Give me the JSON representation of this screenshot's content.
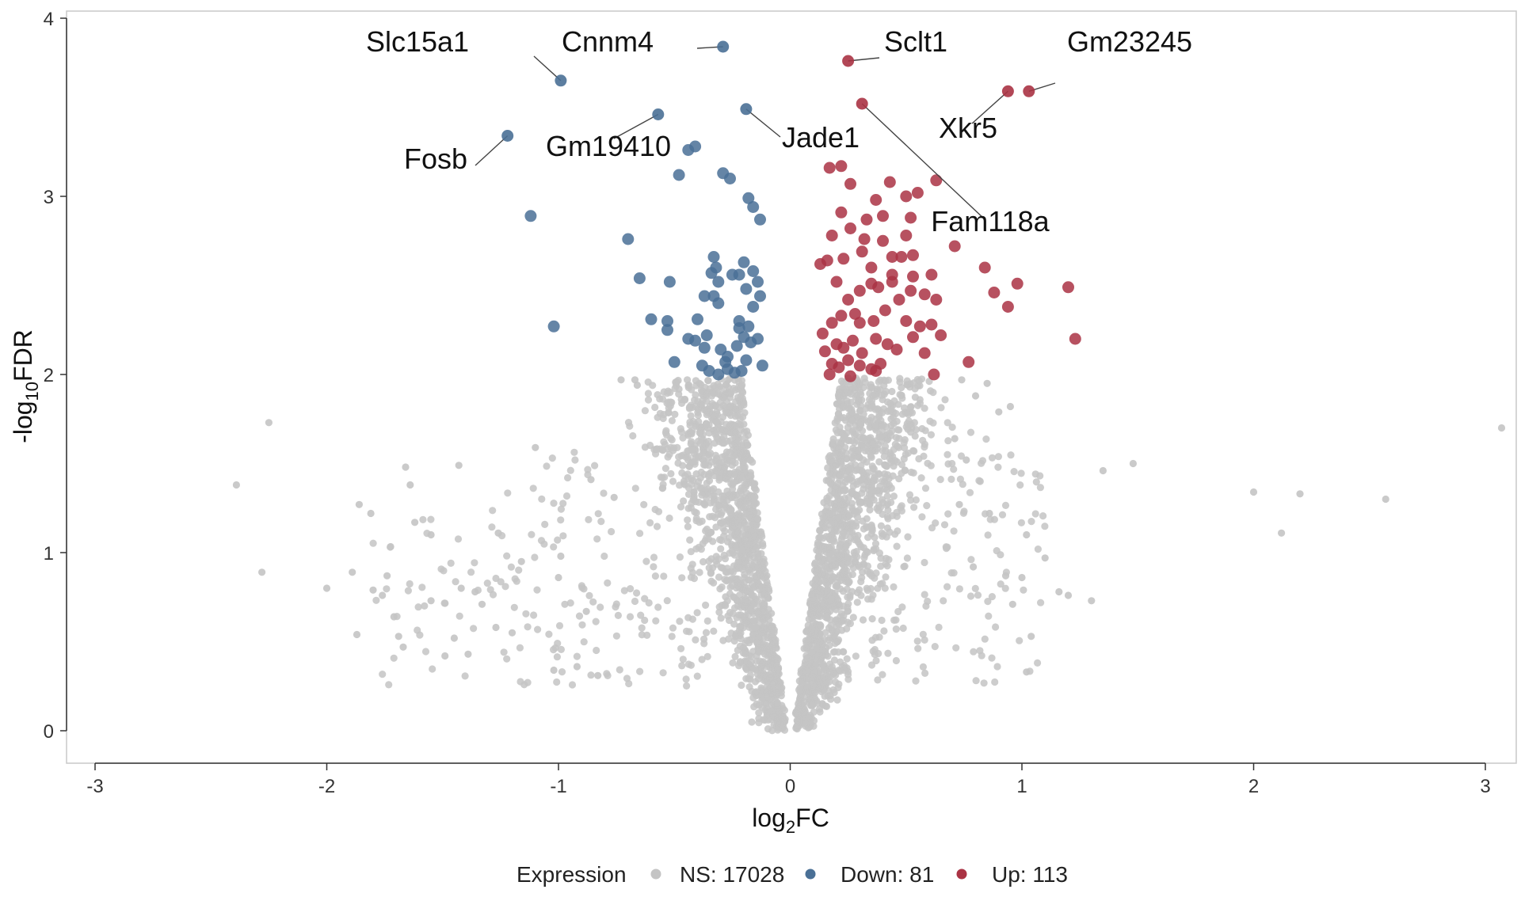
{
  "chart_data": {
    "type": "scatter",
    "subtype": "volcano",
    "xlabel": "log2FC",
    "ylabel": "-log10FDR",
    "xlim": [
      -3.12,
      3.12
    ],
    "ylim": [
      -0.2,
      4.03
    ],
    "x_ticks": [
      -3,
      -2,
      -1,
      0,
      1,
      2,
      3
    ],
    "x_tick_labels": [
      "-3",
      "-2",
      "-1",
      "0",
      "1",
      "2",
      "3"
    ],
    "y_ticks": [
      0,
      1,
      2,
      3,
      4
    ],
    "y_tick_labels": [
      "0",
      "1",
      "2",
      "3",
      "4"
    ],
    "grid": false,
    "legend": {
      "title": "Expression",
      "position": "bottom",
      "entries": [
        {
          "key": "ns",
          "label": "NS: 17028",
          "color": "#c4c4c4"
        },
        {
          "key": "down",
          "label": "Down: 81",
          "color": "#4a7096"
        },
        {
          "key": "up",
          "label": "Up: 113",
          "color": "#aa3344"
        }
      ]
    },
    "colors": {
      "ns": "#c4c4c4",
      "down": "#4a7096",
      "up": "#aa3344"
    },
    "labeled_genes": [
      {
        "gene": "Slc15a1",
        "x": -0.99,
        "y": 3.65,
        "group": "down"
      },
      {
        "gene": "Cnnm4",
        "x": -0.29,
        "y": 3.84,
        "group": "down"
      },
      {
        "gene": "Fosb",
        "x": -1.22,
        "y": 3.34,
        "group": "down"
      },
      {
        "gene": "Gm19410",
        "x": -0.57,
        "y": 3.46,
        "group": "down"
      },
      {
        "gene": "Jade1",
        "x": -0.19,
        "y": 3.49,
        "group": "down"
      },
      {
        "gene": "Sclt1",
        "x": 0.25,
        "y": 3.76,
        "group": "up"
      },
      {
        "gene": "Gm23245",
        "x": 1.03,
        "y": 3.59,
        "group": "up"
      },
      {
        "gene": "Xkr5",
        "x": 0.94,
        "y": 3.59,
        "group": "up"
      },
      {
        "gene": "Fam118a",
        "x": 0.31,
        "y": 3.52,
        "group": "up"
      }
    ],
    "down_points": [
      [
        -1.12,
        2.89
      ],
      [
        -1.02,
        2.27
      ],
      [
        -0.7,
        2.76
      ],
      [
        -0.65,
        2.54
      ],
      [
        -0.6,
        2.31
      ],
      [
        -0.53,
        2.3
      ],
      [
        -0.52,
        2.52
      ],
      [
        -0.5,
        2.07
      ],
      [
        -0.48,
        3.12
      ],
      [
        -0.44,
        3.26
      ],
      [
        -0.41,
        3.28
      ],
      [
        -0.4,
        2.31
      ],
      [
        -0.37,
        2.44
      ],
      [
        -0.33,
        2.66
      ],
      [
        -0.32,
        2.6
      ],
      [
        -0.31,
        2.52
      ],
      [
        -0.29,
        3.13
      ],
      [
        -0.26,
        3.1
      ],
      [
        -0.18,
        2.99
      ],
      [
        -0.16,
        2.94
      ],
      [
        -0.13,
        2.87
      ],
      [
        -0.22,
        2.56
      ],
      [
        -0.2,
        2.63
      ],
      [
        -0.16,
        2.58
      ],
      [
        -0.14,
        2.52
      ],
      [
        -0.13,
        2.44
      ],
      [
        -0.19,
        2.48
      ],
      [
        -0.16,
        2.38
      ],
      [
        -0.22,
        2.3
      ],
      [
        -0.18,
        2.27
      ],
      [
        -0.33,
        2.44
      ],
      [
        -0.31,
        2.4
      ],
      [
        -0.36,
        2.22
      ],
      [
        -0.3,
        2.14
      ],
      [
        -0.27,
        2.1
      ],
      [
        -0.23,
        2.16
      ],
      [
        -0.2,
        2.21
      ],
      [
        -0.17,
        2.18
      ],
      [
        -0.14,
        2.2
      ],
      [
        -0.12,
        2.05
      ],
      [
        -0.38,
        2.05
      ],
      [
        -0.35,
        2.02
      ],
      [
        -0.31,
        2.0
      ],
      [
        -0.27,
        2.03
      ],
      [
        -0.24,
        2.01
      ],
      [
        -0.21,
        2.02
      ],
      [
        -0.41,
        2.19
      ],
      [
        -0.44,
        2.2
      ],
      [
        -0.53,
        2.25
      ],
      [
        -0.25,
        2.56
      ],
      [
        -0.34,
        2.57
      ],
      [
        -0.37,
        2.15
      ],
      [
        -0.28,
        2.07
      ],
      [
        -0.19,
        2.08
      ],
      [
        -0.22,
        2.26
      ]
    ],
    "up_points": [
      [
        0.17,
        3.16
      ],
      [
        0.22,
        3.17
      ],
      [
        0.26,
        3.07
      ],
      [
        0.37,
        2.98
      ],
      [
        0.43,
        3.08
      ],
      [
        0.5,
        3.0
      ],
      [
        0.55,
        3.02
      ],
      [
        0.63,
        3.09
      ],
      [
        0.22,
        2.91
      ],
      [
        0.33,
        2.87
      ],
      [
        0.4,
        2.89
      ],
      [
        0.52,
        2.88
      ],
      [
        0.18,
        2.78
      ],
      [
        0.26,
        2.82
      ],
      [
        0.32,
        2.76
      ],
      [
        0.4,
        2.75
      ],
      [
        0.5,
        2.78
      ],
      [
        0.16,
        2.64
      ],
      [
        0.23,
        2.65
      ],
      [
        0.31,
        2.69
      ],
      [
        0.35,
        2.6
      ],
      [
        0.44,
        2.66
      ],
      [
        0.48,
        2.66
      ],
      [
        0.53,
        2.67
      ],
      [
        0.61,
        2.56
      ],
      [
        0.71,
        2.72
      ],
      [
        0.84,
        2.6
      ],
      [
        0.98,
        2.51
      ],
      [
        1.2,
        2.49
      ],
      [
        0.88,
        2.46
      ],
      [
        0.94,
        2.38
      ],
      [
        1.23,
        2.2
      ],
      [
        0.25,
        2.42
      ],
      [
        0.3,
        2.47
      ],
      [
        0.35,
        2.51
      ],
      [
        0.38,
        2.49
      ],
      [
        0.44,
        2.52
      ],
      [
        0.52,
        2.47
      ],
      [
        0.58,
        2.45
      ],
      [
        0.63,
        2.42
      ],
      [
        0.18,
        2.29
      ],
      [
        0.22,
        2.33
      ],
      [
        0.28,
        2.34
      ],
      [
        0.3,
        2.29
      ],
      [
        0.36,
        2.3
      ],
      [
        0.41,
        2.36
      ],
      [
        0.47,
        2.42
      ],
      [
        0.5,
        2.3
      ],
      [
        0.56,
        2.27
      ],
      [
        0.61,
        2.28
      ],
      [
        0.65,
        2.22
      ],
      [
        0.15,
        2.13
      ],
      [
        0.2,
        2.17
      ],
      [
        0.23,
        2.15
      ],
      [
        0.27,
        2.19
      ],
      [
        0.31,
        2.12
      ],
      [
        0.37,
        2.2
      ],
      [
        0.42,
        2.17
      ],
      [
        0.46,
        2.14
      ],
      [
        0.53,
        2.21
      ],
      [
        0.58,
        2.12
      ],
      [
        0.18,
        2.06
      ],
      [
        0.21,
        2.04
      ],
      [
        0.25,
        2.08
      ],
      [
        0.3,
        2.05
      ],
      [
        0.35,
        2.03
      ],
      [
        0.39,
        2.06
      ],
      [
        0.62,
        2.0
      ],
      [
        0.77,
        2.07
      ],
      [
        0.17,
        2.0
      ],
      [
        0.26,
        1.99
      ],
      [
        0.37,
        2.02
      ],
      [
        0.13,
        2.62
      ],
      [
        0.2,
        2.52
      ],
      [
        0.14,
        2.23
      ],
      [
        0.44,
        2.56
      ],
      [
        0.53,
        2.55
      ]
    ],
    "ns_notable_points": [
      [
        -2.39,
        1.38
      ],
      [
        -2.28,
        0.89
      ],
      [
        -2.25,
        1.73
      ],
      [
        -2.0,
        0.8
      ],
      [
        -1.89,
        0.89
      ],
      [
        -1.87,
        0.54
      ],
      [
        -1.86,
        1.27
      ],
      [
        -1.8,
        0.79
      ],
      [
        -1.76,
        0.76
      ],
      [
        -1.74,
        0.87
      ],
      [
        -1.71,
        0.64
      ],
      [
        -1.69,
        0.53
      ],
      [
        -1.66,
        1.48
      ],
      [
        -1.64,
        1.38
      ],
      [
        -1.62,
        1.17
      ],
      [
        -1.55,
        1.1
      ],
      [
        -1.49,
        0.42
      ],
      [
        -1.45,
        0.52
      ],
      [
        -1.43,
        1.49
      ],
      [
        -1.39,
        0.43
      ],
      [
        -1.36,
        0.78
      ],
      [
        -1.26,
        1.11
      ],
      [
        -1.1,
        1.59
      ],
      [
        -1.02,
        0.34
      ],
      [
        -1.0,
        0.86
      ],
      [
        -0.92,
        0.36
      ],
      [
        -0.88,
        0.67
      ],
      [
        -0.83,
        0.31
      ],
      [
        -0.73,
        1.97
      ],
      [
        -0.67,
        1.97
      ],
      [
        -0.66,
        1.94
      ],
      [
        -0.76,
        1.31
      ],
      [
        -0.86,
        1.41
      ],
      [
        -0.99,
        0.98
      ],
      [
        -1.16,
        0.95
      ],
      [
        -1.2,
        0.55
      ],
      [
        -1.27,
        0.58
      ],
      [
        -1.33,
        0.71
      ],
      [
        -1.42,
        0.8
      ],
      [
        -1.55,
        0.73
      ],
      [
        -1.67,
        0.47
      ],
      [
        -1.81,
        1.22
      ],
      [
        0.71,
        1.64
      ],
      [
        0.74,
        1.97
      ],
      [
        0.8,
        1.88
      ],
      [
        0.85,
        1.95
      ],
      [
        0.9,
        1.79
      ],
      [
        0.95,
        1.82
      ],
      [
        0.76,
        1.52
      ],
      [
        0.82,
        1.4
      ],
      [
        0.86,
        1.22
      ],
      [
        0.93,
        0.87
      ],
      [
        0.96,
        0.71
      ],
      [
        1.0,
        0.86
      ],
      [
        1.02,
        0.33
      ],
      [
        1.04,
        0.53
      ],
      [
        1.1,
        0.97
      ],
      [
        1.16,
        0.78
      ],
      [
        1.2,
        0.76
      ],
      [
        1.3,
        0.73
      ],
      [
        1.35,
        1.46
      ],
      [
        1.48,
        1.5
      ],
      [
        2.0,
        1.34
      ],
      [
        2.12,
        1.11
      ],
      [
        2.2,
        1.33
      ],
      [
        2.57,
        1.3
      ],
      [
        3.07,
        1.7
      ],
      [
        1.02,
        1.1
      ],
      [
        0.79,
        0.92
      ],
      [
        0.73,
        1.27
      ]
    ],
    "ns_background": "approximately 17028 non-significant genes forming a dense V-shaped cloud around log2FC = 0, with -log10FDR below 2"
  }
}
